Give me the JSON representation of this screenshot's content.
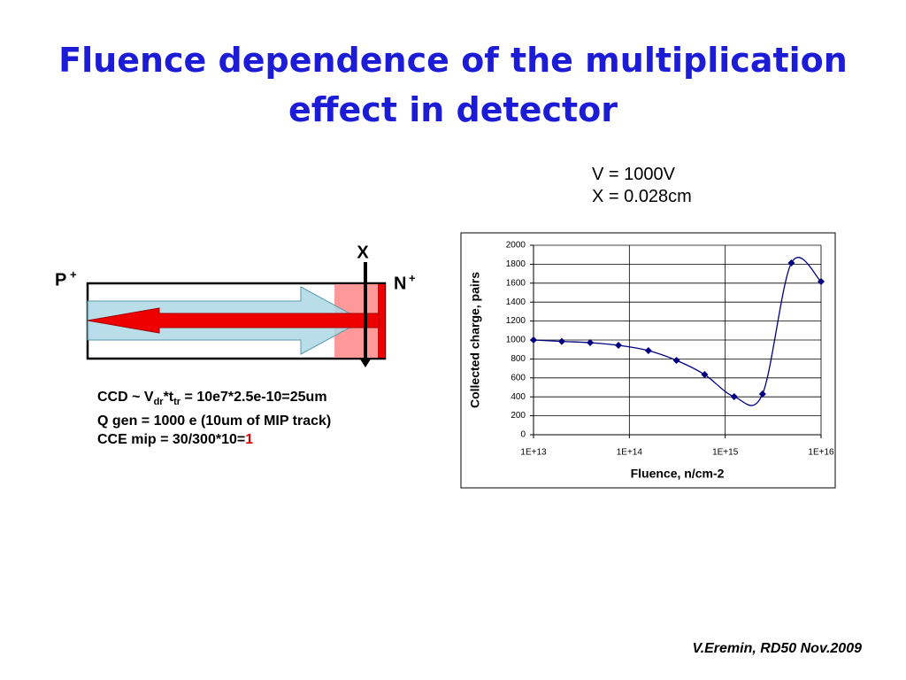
{
  "title": "Fluence dependence of the multiplication effect in detector",
  "conditions": [
    "V = 1000V",
    "X = 0.028cm"
  ],
  "diagram": {
    "x_label": "X",
    "p_label": "P",
    "p_sup": "+",
    "n_label": "N",
    "n_sup": "+"
  },
  "notes": {
    "line1": [
      "CCD ~ V",
      "dr",
      "*t",
      "tr",
      " = 10e7*2.5e-10=25um"
    ],
    "line2": "Q gen = 1000 e (10um of MIP track)",
    "line3": [
      "CCE mip = 30/300*10=",
      "1"
    ]
  },
  "footer": "V.Eremin, RD50 Nov.2009",
  "chart_data": {
    "type": "line",
    "xlabel": "Fluence, n/cm-2",
    "ylabel": "Collected charge, pairs",
    "x": [
      10000000000000.0,
      19700000000000.0,
      39000000000000.0,
      77000000000000.0,
      158000000000000.0,
      310000000000000.0,
      610000000000000.0,
      1240000000000000.0,
      2450000000000000.0,
      4900000000000000.0,
      1e+16
    ],
    "values": [
      1000,
      985,
      972,
      944,
      888,
      785,
      635,
      402,
      430,
      1813,
      1617
    ],
    "color": "#000080",
    "xscale": "log",
    "xlim": [
      10000000000000.0,
      1e+16
    ],
    "xticks": [
      {
        "value": 10000000000000.0,
        "label": "1E+13"
      },
      {
        "value": 100000000000000.0,
        "label": "1E+14"
      },
      {
        "value": 1000000000000000.0,
        "label": "1E+15"
      },
      {
        "value": 1e+16,
        "label": "1E+16"
      }
    ],
    "ylim": [
      0,
      2000
    ],
    "yticks": [
      0,
      200,
      400,
      600,
      800,
      1000,
      1200,
      1400,
      1600,
      1800,
      2000
    ],
    "grid": true
  }
}
